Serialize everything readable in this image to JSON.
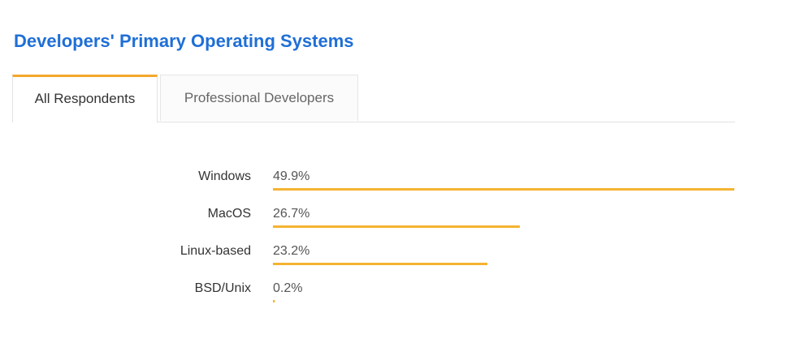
{
  "title": "Developers' Primary Operating Systems",
  "tabs": [
    {
      "label": "All Respondents",
      "active": true
    },
    {
      "label": "Professional Developers",
      "active": false
    }
  ],
  "colors": {
    "title": "#1f6fd6",
    "bar": "#f4b331",
    "tab_accent": "#f4a72a"
  },
  "chart_data": {
    "type": "bar",
    "orientation": "horizontal",
    "categories": [
      "Windows",
      "MacOS",
      "Linux-based",
      "BSD/Unix"
    ],
    "values": [
      49.9,
      26.7,
      23.2,
      0.2
    ],
    "value_labels": [
      "49.9%",
      "26.7%",
      "23.2%",
      "0.2%"
    ],
    "unit": "%",
    "xlim": [
      0,
      49.9
    ],
    "grid": false,
    "legend": "none"
  }
}
